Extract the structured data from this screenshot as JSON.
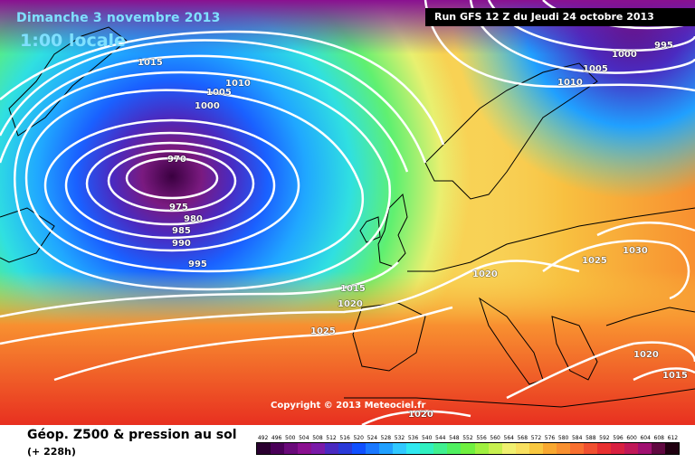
{
  "header": {
    "date_title": "Dimanche 3 novembre 2013",
    "time_title": "1:00 locale",
    "run_label": "Run GFS 12 Z du Jeudi 24 octobre 2013"
  },
  "copyright": "Copyright © 2013 Meteociel.fr",
  "footer": {
    "title": "Géop. Z500 & pression au sol",
    "lead_time": "(+ 228h)"
  },
  "isobar_labels": [
    "1015",
    "1010",
    "1005",
    "1000",
    "970",
    "975",
    "980",
    "985",
    "990",
    "995",
    "1015",
    "1020",
    "1025",
    "1020",
    "1025",
    "1030",
    "1000",
    "995",
    "1005",
    "1010",
    "1020",
    "1015",
    "1020"
  ],
  "scale": {
    "ticks": [
      "492",
      "496",
      "500",
      "504",
      "508",
      "512",
      "516",
      "520",
      "524",
      "528",
      "532",
      "536",
      "540",
      "544",
      "548",
      "552",
      "556",
      "560",
      "564",
      "568",
      "572",
      "576",
      "580",
      "584",
      "588",
      "592",
      "596",
      "600",
      "604",
      "608",
      "612"
    ],
    "colors": [
      "#2a0030",
      "#4a0058",
      "#6a0a7a",
      "#8a1090",
      "#7a1aa8",
      "#4a2ac0",
      "#2a3ad8",
      "#1050ff",
      "#1a78ff",
      "#20a0ff",
      "#30c8ff",
      "#30e8f0",
      "#30f0c0",
      "#40f090",
      "#50f060",
      "#70f040",
      "#a0f040",
      "#c8f050",
      "#f0f070",
      "#f8e060",
      "#f8c840",
      "#f8a830",
      "#f89030",
      "#f87030",
      "#f05030",
      "#e83030",
      "#d82040",
      "#c01858",
      "#a01070",
      "#600840",
      "#200010"
    ]
  },
  "colors": {
    "title": "#7fe0ff",
    "isobar": "#ffffff",
    "coastline": "#000000"
  }
}
